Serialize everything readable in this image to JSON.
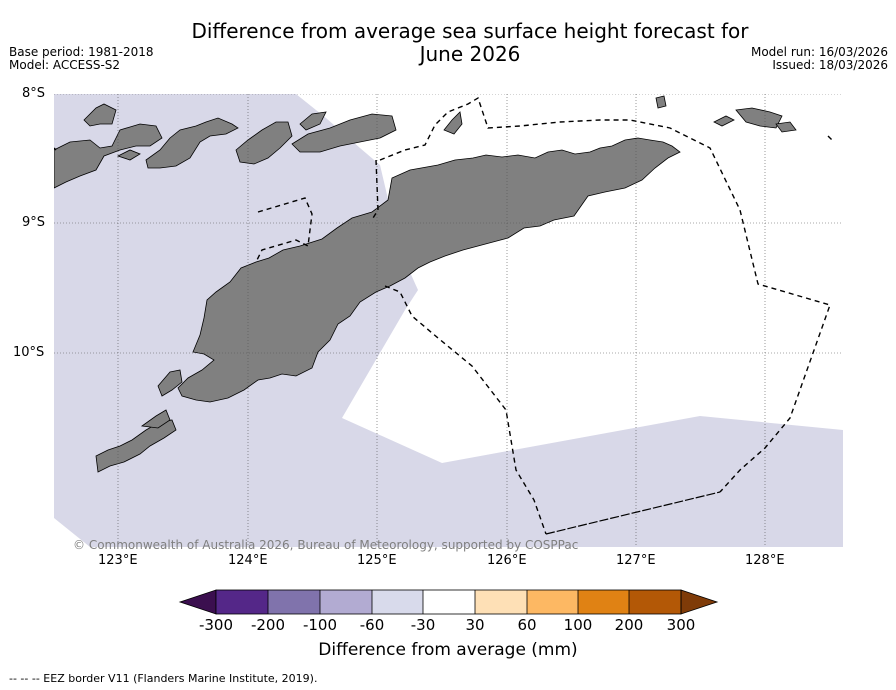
{
  "header": {
    "title_line1": "Difference from average sea surface height forecast for",
    "title_line2": "June 2026",
    "base_period": "Base period: 1981-2018",
    "model": "Model: ACCESS-S2",
    "model_run": "Model run: 16/03/2026",
    "issued": "Issued: 18/03/2026"
  },
  "map": {
    "latitude_labels": [
      "8°S",
      "9°S",
      "10°S"
    ],
    "longitude_labels": [
      "123°E",
      "124°E",
      "125°E",
      "126°E",
      "127°E",
      "128°E"
    ],
    "copyright": "© Commonwealth of Australia 2026, Bureau of Meteorology, supported by COSPPac",
    "land_color": "#808080",
    "anomaly_fill_color": "#d8d8e8",
    "neutral_fill_color": "#ffffff"
  },
  "colorbar": {
    "label": "Difference from average (mm)",
    "ticks": [
      "-300",
      "-200",
      "-100",
      "-60",
      "-30",
      "30",
      "60",
      "100",
      "200",
      "300"
    ],
    "colors": [
      "#3b0f4f",
      "#542788",
      "#8073ac",
      "#b2abd2",
      "#d8daeb",
      "#ffffff",
      "#fee0b6",
      "#fdb863",
      "#e08214",
      "#b35806",
      "#7f3b08"
    ]
  },
  "legend": {
    "eez_text": "--  --  -- EEZ border V11 (Flanders Marine Institute, 2019)."
  }
}
